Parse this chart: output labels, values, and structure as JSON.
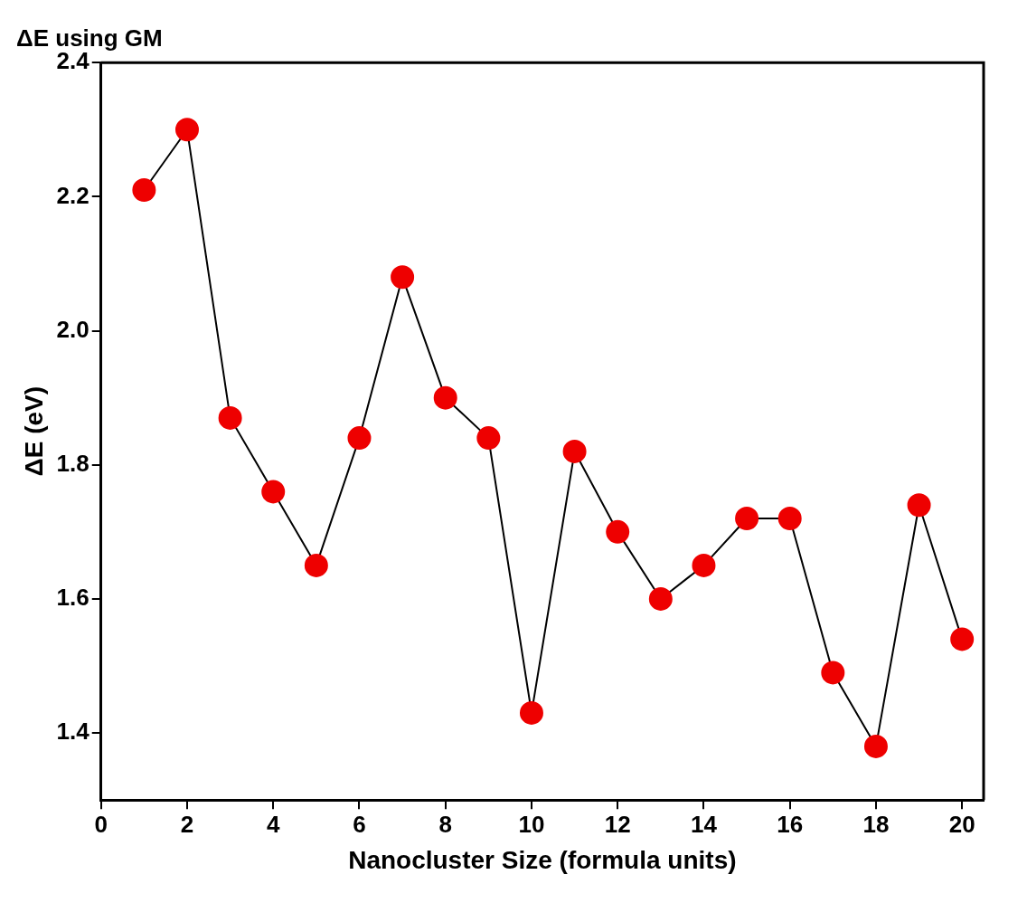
{
  "chart_data": {
    "type": "line",
    "title": "ΔE using GM",
    "xlabel": "Nanocluster Size (formula units)",
    "ylabel": "ΔE (eV)",
    "x": [
      1,
      2,
      3,
      4,
      5,
      6,
      7,
      8,
      9,
      10,
      11,
      12,
      13,
      14,
      15,
      16,
      17,
      18,
      19,
      20
    ],
    "series": [
      {
        "color": "#ee0000",
        "values": [
          2.21,
          2.3,
          1.87,
          1.76,
          1.65,
          1.84,
          2.08,
          1.9,
          1.84,
          1.43,
          1.82,
          1.7,
          1.6,
          1.65,
          1.72,
          1.72,
          1.49,
          1.38,
          1.74,
          1.54
        ]
      }
    ],
    "xlim": [
      0,
      20.5
    ],
    "xticks": [
      0,
      2,
      4,
      6,
      8,
      10,
      12,
      14,
      16,
      18,
      20
    ],
    "ylim": [
      1.3,
      2.4
    ],
    "yticks": [
      1.4,
      1.6,
      1.8,
      {
        "value": 2,
        "label": "2.0"
      },
      2.2,
      2.4
    ],
    "grid": false,
    "legend": false,
    "marker": "circle",
    "line_style": "solid"
  }
}
